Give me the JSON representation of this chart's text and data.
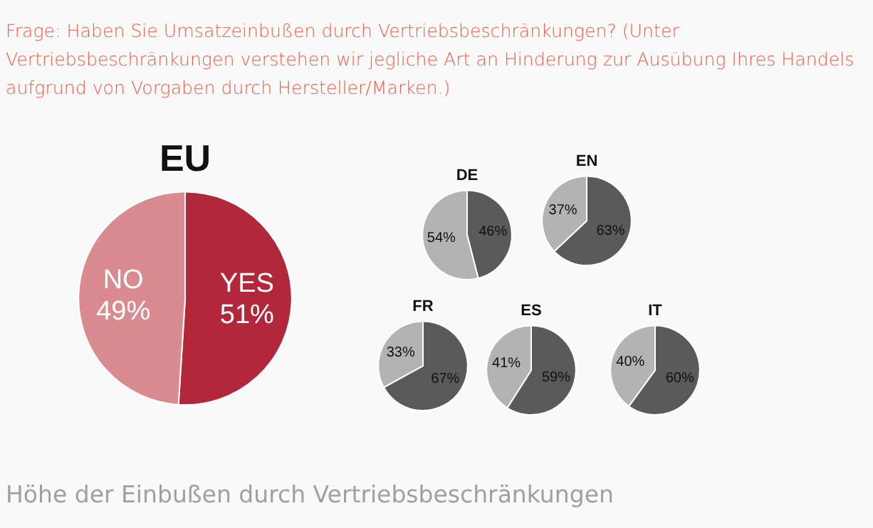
{
  "chart_data": [
    {
      "type": "pie",
      "title": "EU",
      "categories": [
        "YES",
        "NO"
      ],
      "values": [
        51,
        49
      ],
      "colors": [
        "#b2283a",
        "#d98b90"
      ],
      "value_labels": [
        "51%",
        "49%"
      ],
      "legend": false,
      "annotations": [
        "Frage: Haben Sie Umsatzeinbußen durch Vertriebsbeschränkungen? (Unter Vertriebsbeschränkungen verstehen wir jegliche Art an Hinderung zur Ausübung Ihres Handels aufgrund von Vorgaben durch Hersteller/Marken.)",
        "Höhe der Einbußen durch Vertriebsbeschränkungen"
      ]
    },
    {
      "type": "pie",
      "title": "DE",
      "categories": [
        null,
        null
      ],
      "values": [
        46,
        54
      ],
      "colors": [
        "#5a5a5a",
        "#b3b3b3"
      ],
      "value_labels": [
        "46%",
        "54%"
      ],
      "legend": false
    },
    {
      "type": "pie",
      "title": "EN",
      "categories": [
        null,
        null
      ],
      "values": [
        63,
        37
      ],
      "colors": [
        "#5a5a5a",
        "#b3b3b3"
      ],
      "value_labels": [
        "63%",
        "37%"
      ],
      "legend": false
    },
    {
      "type": "pie",
      "title": "FR",
      "categories": [
        null,
        null
      ],
      "values": [
        67,
        33
      ],
      "colors": [
        "#5a5a5a",
        "#b3b3b3"
      ],
      "value_labels": [
        "67%",
        "33%"
      ],
      "legend": false
    },
    {
      "type": "pie",
      "title": "ES",
      "categories": [
        null,
        null
      ],
      "values": [
        59,
        41
      ],
      "colors": [
        "#5a5a5a",
        "#b3b3b3"
      ],
      "value_labels": [
        "59%",
        "41%"
      ],
      "legend": false
    },
    {
      "type": "pie",
      "title": "IT",
      "categories": [
        null,
        null
      ],
      "values": [
        60,
        40
      ],
      "colors": [
        "#5a5a5a",
        "#b3b3b3"
      ],
      "value_labels": [
        "60%",
        "40%"
      ],
      "legend": false
    }
  ]
}
